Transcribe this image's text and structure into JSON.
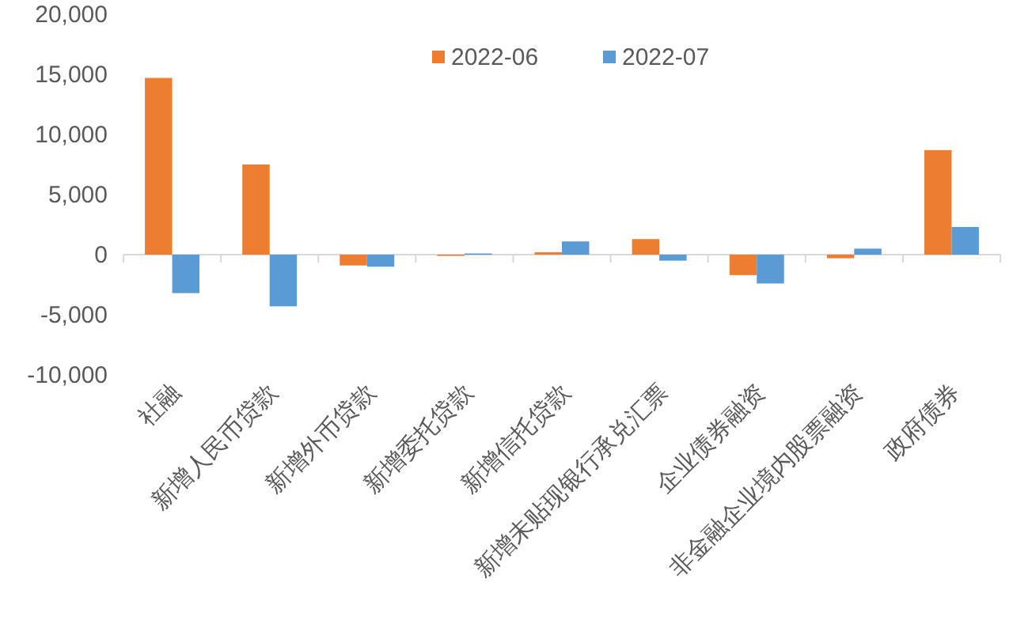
{
  "chart_data": {
    "type": "bar",
    "categories": [
      "社融",
      "新增人民币贷款",
      "新增外币贷款",
      "新增委托贷款",
      "新增信托贷款",
      "新增未贴现银行承兑汇票",
      "企业债券融资",
      "非金融企业境内股票融资",
      "政府债券"
    ],
    "series": [
      {
        "name": "2022-06",
        "color": "#ed7d31",
        "values": [
          14700,
          7500,
          -900,
          0,
          200,
          1300,
          -1700,
          -300,
          8700
        ]
      },
      {
        "name": "2022-07",
        "color": "#5b9bd5",
        "values": [
          -3200,
          -4300,
          -1000,
          100,
          1100,
          -500,
          -2400,
          500,
          2300
        ]
      }
    ],
    "ylim": [
      -10000,
      20000
    ],
    "yticks": [
      {
        "value": -10000,
        "label": "-10,000"
      },
      {
        "value": -5000,
        "label": "-5,000"
      },
      {
        "value": 0,
        "label": "0"
      },
      {
        "value": 5000,
        "label": "5,000"
      },
      {
        "value": 10000,
        "label": "10,000"
      },
      {
        "value": 15000,
        "label": "15,000"
      },
      {
        "value": 20000,
        "label": "20,000"
      }
    ],
    "legend": "top"
  }
}
